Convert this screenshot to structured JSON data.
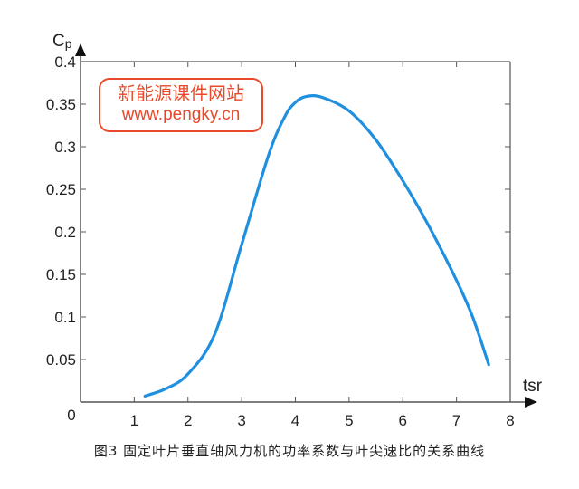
{
  "chart_data": {
    "type": "line",
    "title": "",
    "xlabel": "tsr",
    "ylabel": "Cp",
    "xlim": [
      0,
      8
    ],
    "ylim": [
      0,
      0.4
    ],
    "x_ticks": [
      "0",
      "1",
      "2",
      "3",
      "4",
      "5",
      "6",
      "7",
      "8"
    ],
    "y_ticks": [
      "0",
      "0.05",
      "0.1",
      "0.15",
      "0.2",
      "0.25",
      "0.3",
      "0.35",
      "0.4"
    ],
    "grid": false,
    "series": [
      {
        "name": "Cp",
        "color": "#1f8fe0",
        "x": [
          1.2,
          1.6,
          2.0,
          2.5,
          3.0,
          3.5,
          3.8,
          4.0,
          4.2,
          4.5,
          5.0,
          5.5,
          6.0,
          6.5,
          7.0,
          7.3,
          7.6
        ],
        "y": [
          0.007,
          0.016,
          0.033,
          0.08,
          0.185,
          0.29,
          0.335,
          0.352,
          0.359,
          0.358,
          0.342,
          0.308,
          0.26,
          0.205,
          0.143,
          0.1,
          0.044
        ]
      }
    ]
  },
  "watermark": {
    "line1": "新能源课件网站",
    "line2": "www.pengky.cn"
  },
  "caption": "图3 固定叶片垂直轴风力机的功率系数与叶尖速比的关系曲线"
}
